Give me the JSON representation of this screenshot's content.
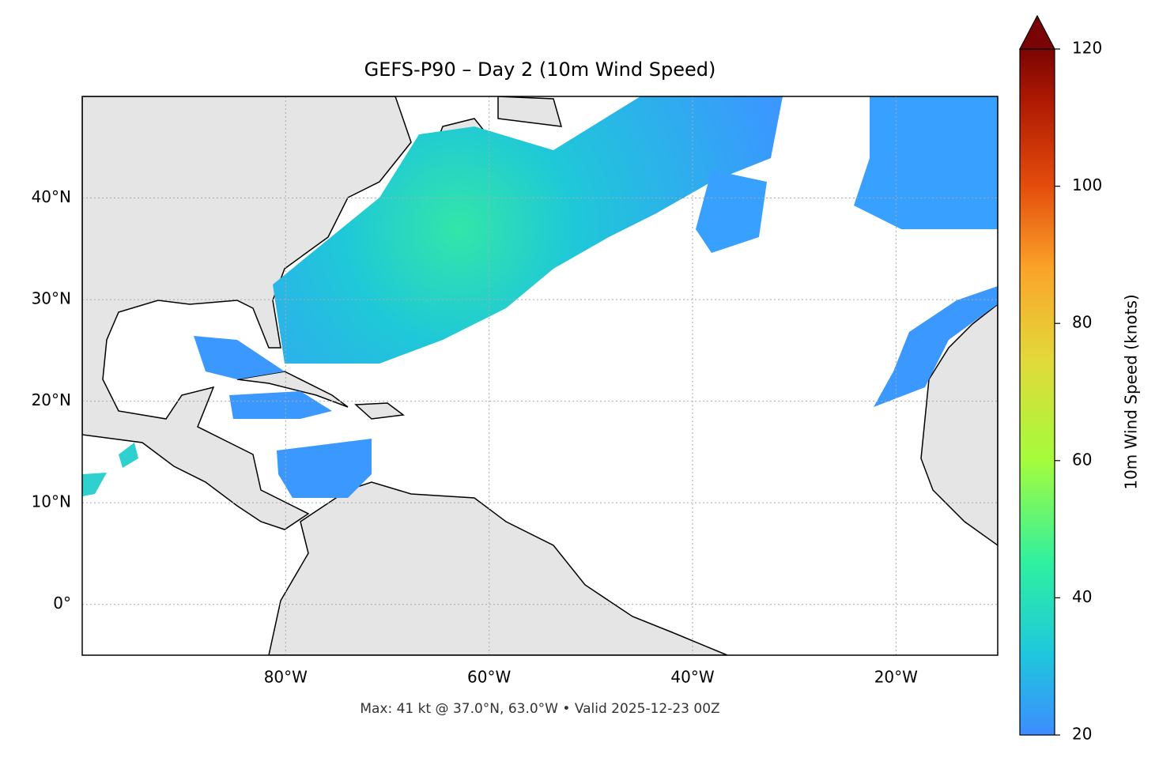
{
  "chart_data": {
    "type": "map",
    "title": "GEFS-P90 – Day 2 (10m Wind Speed)",
    "footer": "Max: 41 kt @ 37.0°N, 63.0°W • Valid 2025-12-23 00Z",
    "xlim": [
      -100,
      -10
    ],
    "ylim": [
      -5,
      50
    ],
    "xticks": [
      {
        "value": -80,
        "label": "80°W"
      },
      {
        "value": -60,
        "label": "60°W"
      },
      {
        "value": -40,
        "label": "40°W"
      },
      {
        "value": -20,
        "label": "20°W"
      }
    ],
    "yticks": [
      {
        "value": 0,
        "label": "0°"
      },
      {
        "value": 10,
        "label": "10°N"
      },
      {
        "value": 20,
        "label": "20°N"
      },
      {
        "value": 30,
        "label": "30°N"
      },
      {
        "value": 40,
        "label": "40°N"
      }
    ],
    "grid": true,
    "colorbar": {
      "label": "10m Wind Speed (knots)",
      "lim": [
        20,
        120
      ],
      "ticks": [
        20,
        40,
        60,
        80,
        100,
        120
      ]
    }
  }
}
